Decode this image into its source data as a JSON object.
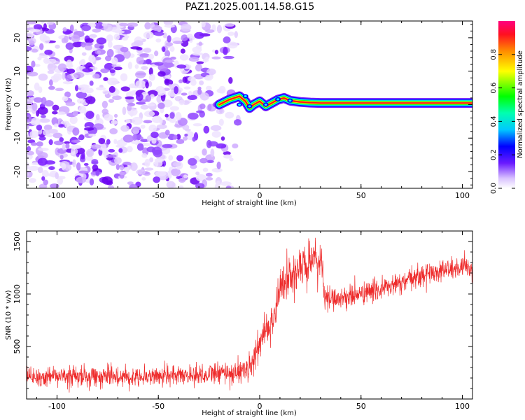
{
  "chart_data": [
    {
      "type": "heatmap",
      "title": "PAZ1.2025.001.14.58.G15",
      "xlabel": "Height of straight line (km)",
      "ylabel": "Frequency (Hz)",
      "xlim": [
        -115,
        105
      ],
      "ylim": [
        -25,
        25
      ],
      "x_ticks": [
        "-100",
        "-50",
        "0",
        "50",
        "100"
      ],
      "x_tick_values": [
        -100,
        -50,
        0,
        50,
        100
      ],
      "y_ticks": [
        "20",
        "10",
        "0",
        "-10",
        "-20"
      ],
      "y_tick_values": [
        20,
        10,
        0,
        -10,
        -20
      ],
      "colorbar": {
        "label": "Normalized spectral amplitude",
        "range": [
          0,
          1
        ],
        "ticks": [
          "0.0",
          "0.2",
          "0.4",
          "0.6",
          "0.8"
        ],
        "tick_values": [
          0.0,
          0.2,
          0.4,
          0.6,
          0.8
        ]
      },
      "signal_trace": {
        "description_values": "frequency peak (Hz) vs height (km)",
        "x": [
          -20,
          -15,
          -10,
          -7,
          -5,
          -3,
          0,
          3,
          6,
          9,
          12,
          15,
          20,
          25,
          30,
          50,
          80,
          105
        ],
        "y": [
          0,
          1.5,
          2.5,
          1,
          -1,
          0,
          1,
          -0.5,
          0.5,
          1.5,
          2,
          1.2,
          0.8,
          0.6,
          0.5,
          0.5,
          0.5,
          0.5
        ],
        "noise_region_x": [
          -115,
          -20
        ]
      }
    },
    {
      "type": "line",
      "title": "",
      "xlabel": "Height of straight line (km)",
      "ylabel": "SNR (10 * v/v)",
      "xlim": [
        -115,
        105
      ],
      "ylim": [
        0,
        1600
      ],
      "x_ticks": [
        "-100",
        "-50",
        "0",
        "50",
        "100"
      ],
      "x_tick_values": [
        -100,
        -50,
        0,
        50,
        100
      ],
      "y_ticks": [
        "500",
        "1000",
        "1500"
      ],
      "y_tick_values": [
        500,
        1000,
        1500
      ],
      "color": "#ee2b2b",
      "series": [
        {
          "name": "SNR",
          "x": [
            -115,
            -100,
            -80,
            -60,
            -40,
            -20,
            -10,
            -5,
            0,
            2,
            5,
            8,
            10,
            12,
            15,
            20,
            25,
            30,
            31,
            32,
            35,
            40,
            50,
            60,
            70,
            80,
            90,
            100,
            105
          ],
          "mean": [
            200,
            210,
            215,
            215,
            225,
            240,
            260,
            300,
            500,
            650,
            700,
            850,
            1050,
            1100,
            1150,
            1250,
            1300,
            1320,
            1250,
            950,
            960,
            960,
            1000,
            1050,
            1100,
            1180,
            1230,
            1240,
            1250
          ],
          "noise": [
            110,
            110,
            110,
            110,
            110,
            120,
            130,
            150,
            180,
            200,
            220,
            230,
            240,
            240,
            240,
            230,
            220,
            200,
            180,
            130,
            120,
            120,
            120,
            120,
            120,
            120,
            120,
            120,
            120
          ]
        }
      ]
    }
  ]
}
